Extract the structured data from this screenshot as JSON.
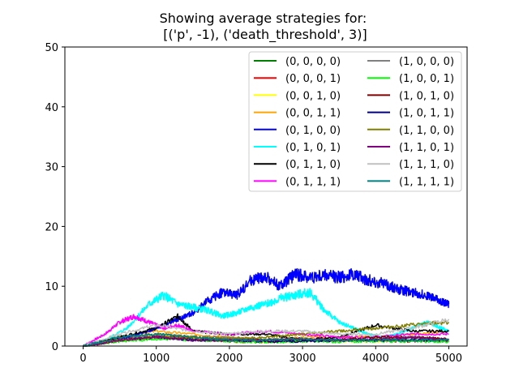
{
  "chart_data": {
    "type": "line",
    "title": "Showing average strategies for:\n[('p', -1), ('death_threshold', 3)]",
    "xlabel": "",
    "ylabel": "",
    "xlim": [
      -250,
      5250
    ],
    "ylim": [
      0,
      50
    ],
    "xticks": [
      0,
      1000,
      2000,
      3000,
      4000,
      5000
    ],
    "yticks": [
      0,
      10,
      20,
      30,
      40,
      50
    ],
    "grid": false,
    "legend_position": "top-right",
    "legend_columns": 2,
    "series": [
      {
        "name": "(0, 0, 0, 0)",
        "color": "#008000",
        "points": [
          [
            0,
            0
          ],
          [
            500,
            1.5
          ],
          [
            1000,
            1.8
          ],
          [
            1500,
            1.2
          ],
          [
            2000,
            1.0
          ],
          [
            2500,
            1.0
          ],
          [
            3000,
            1.1
          ],
          [
            3500,
            1.0
          ],
          [
            4000,
            1.1
          ],
          [
            4500,
            1.0
          ],
          [
            5000,
            0.8
          ]
        ]
      },
      {
        "name": "(0, 0, 0, 1)",
        "color": "#ff0000",
        "points": [
          [
            0,
            0
          ],
          [
            500,
            1.0
          ],
          [
            1000,
            1.5
          ],
          [
            1500,
            1.2
          ],
          [
            2000,
            0.8
          ],
          [
            2500,
            0.7
          ],
          [
            3000,
            0.8
          ],
          [
            3500,
            1.0
          ],
          [
            4000,
            0.9
          ],
          [
            4500,
            0.8
          ],
          [
            5000,
            1.0
          ]
        ]
      },
      {
        "name": "(0, 0, 1, 0)",
        "color": "#ffff00",
        "points": [
          [
            0,
            0
          ],
          [
            500,
            1.0
          ],
          [
            1000,
            2.0
          ],
          [
            1500,
            1.5
          ],
          [
            2000,
            1.0
          ],
          [
            2500,
            0.8
          ],
          [
            3000,
            1.0
          ],
          [
            3500,
            0.8
          ],
          [
            4000,
            0.8
          ],
          [
            4500,
            1.0
          ],
          [
            5000,
            1.0
          ]
        ]
      },
      {
        "name": "(0, 0, 1, 1)",
        "color": "#ffa500",
        "points": [
          [
            0,
            0
          ],
          [
            500,
            1.5
          ],
          [
            1000,
            2.5
          ],
          [
            1500,
            2.0
          ],
          [
            2000,
            1.5
          ],
          [
            2500,
            1.0
          ],
          [
            3000,
            1.5
          ],
          [
            3500,
            1.5
          ],
          [
            4000,
            1.5
          ],
          [
            4500,
            2.0
          ],
          [
            5000,
            2.5
          ]
        ]
      },
      {
        "name": "(0, 1, 0, 0)",
        "color": "#0000ff",
        "points": [
          [
            0,
            0
          ],
          [
            300,
            0.8
          ],
          [
            600,
            1.5
          ],
          [
            900,
            2.5
          ],
          [
            1100,
            3.5
          ],
          [
            1300,
            4.5
          ],
          [
            1500,
            5.5
          ],
          [
            1700,
            7.5
          ],
          [
            1900,
            9.0
          ],
          [
            2100,
            8.5
          ],
          [
            2300,
            11.0
          ],
          [
            2500,
            11.5
          ],
          [
            2700,
            10.0
          ],
          [
            2900,
            12.0
          ],
          [
            3100,
            11.5
          ],
          [
            3300,
            11.8
          ],
          [
            3500,
            11.5
          ],
          [
            3700,
            12.0
          ],
          [
            3900,
            11.0
          ],
          [
            4100,
            10.5
          ],
          [
            4300,
            9.5
          ],
          [
            4500,
            9.0
          ],
          [
            4700,
            8.5
          ],
          [
            4900,
            7.5
          ],
          [
            5000,
            7.0
          ]
        ]
      },
      {
        "name": "(0, 1, 0, 1)",
        "color": "#00ffff",
        "points": [
          [
            0,
            0
          ],
          [
            300,
            1.0
          ],
          [
            600,
            3.0
          ],
          [
            900,
            7.0
          ],
          [
            1100,
            8.5
          ],
          [
            1300,
            7.0
          ],
          [
            1500,
            6.5
          ],
          [
            1700,
            6.0
          ],
          [
            1900,
            5.0
          ],
          [
            2100,
            5.5
          ],
          [
            2300,
            6.5
          ],
          [
            2500,
            7.0
          ],
          [
            2700,
            8.0
          ],
          [
            2900,
            8.5
          ],
          [
            3100,
            9.0
          ],
          [
            3300,
            6.0
          ],
          [
            3500,
            4.0
          ],
          [
            3700,
            3.0
          ],
          [
            3900,
            2.0
          ],
          [
            4100,
            1.5
          ],
          [
            4300,
            2.0
          ],
          [
            4500,
            3.0
          ],
          [
            4700,
            4.0
          ],
          [
            4900,
            3.0
          ],
          [
            5000,
            2.5
          ]
        ]
      },
      {
        "name": "(0, 1, 1, 0)",
        "color": "#000000",
        "points": [
          [
            0,
            0
          ],
          [
            500,
            1.5
          ],
          [
            1000,
            3.0
          ],
          [
            1300,
            5.0
          ],
          [
            1500,
            2.5
          ],
          [
            2000,
            2.0
          ],
          [
            2500,
            2.0
          ],
          [
            3000,
            1.0
          ],
          [
            3500,
            1.5
          ],
          [
            4000,
            3.5
          ],
          [
            4500,
            2.5
          ],
          [
            5000,
            2.5
          ]
        ]
      },
      {
        "name": "(0, 1, 1, 1)",
        "color": "#ff00ff",
        "points": [
          [
            0,
            0
          ],
          [
            300,
            2.0
          ],
          [
            500,
            4.0
          ],
          [
            700,
            5.0
          ],
          [
            900,
            4.0
          ],
          [
            1100,
            3.0
          ],
          [
            1300,
            3.5
          ],
          [
            1500,
            2.5
          ],
          [
            2000,
            2.0
          ],
          [
            2500,
            2.5
          ],
          [
            3000,
            2.0
          ],
          [
            3500,
            1.5
          ],
          [
            4000,
            1.5
          ],
          [
            4500,
            2.0
          ],
          [
            5000,
            2.0
          ]
        ]
      },
      {
        "name": "(1, 0, 0, 0)",
        "color": "#808080",
        "points": [
          [
            0,
            0
          ],
          [
            500,
            1.0
          ],
          [
            1000,
            2.0
          ],
          [
            1500,
            1.5
          ],
          [
            2000,
            1.5
          ],
          [
            2500,
            1.0
          ],
          [
            3000,
            1.0
          ],
          [
            3500,
            1.0
          ],
          [
            4000,
            1.0
          ],
          [
            4500,
            1.5
          ],
          [
            5000,
            1.0
          ]
        ]
      },
      {
        "name": "(1, 0, 0, 1)",
        "color": "#00ff00",
        "points": [
          [
            0,
            0
          ],
          [
            500,
            0.8
          ],
          [
            1000,
            1.2
          ],
          [
            1500,
            1.0
          ],
          [
            2000,
            0.8
          ],
          [
            2500,
            0.6
          ],
          [
            3000,
            0.8
          ],
          [
            3500,
            0.7
          ],
          [
            4000,
            0.8
          ],
          [
            4500,
            0.8
          ],
          [
            5000,
            0.7
          ]
        ]
      },
      {
        "name": "(1, 0, 1, 0)",
        "color": "#800000",
        "points": [
          [
            0,
            0
          ],
          [
            500,
            1.0
          ],
          [
            1000,
            1.5
          ],
          [
            1500,
            1.5
          ],
          [
            2000,
            1.0
          ],
          [
            2500,
            1.0
          ],
          [
            3000,
            1.0
          ],
          [
            3500,
            1.0
          ],
          [
            4000,
            1.5
          ],
          [
            4500,
            1.5
          ],
          [
            5000,
            1.2
          ]
        ]
      },
      {
        "name": "(1, 0, 1, 1)",
        "color": "#000080",
        "points": [
          [
            0,
            0
          ],
          [
            500,
            1.0
          ],
          [
            1000,
            1.5
          ],
          [
            1500,
            1.0
          ],
          [
            2000,
            1.0
          ],
          [
            2500,
            0.8
          ],
          [
            3000,
            0.8
          ],
          [
            3500,
            1.0
          ],
          [
            4000,
            1.0
          ],
          [
            4500,
            1.0
          ],
          [
            5000,
            1.0
          ]
        ]
      },
      {
        "name": "(1, 1, 0, 0)",
        "color": "#808000",
        "points": [
          [
            0,
            0
          ],
          [
            500,
            1.0
          ],
          [
            1000,
            1.5
          ],
          [
            1500,
            1.5
          ],
          [
            2000,
            1.2
          ],
          [
            2500,
            1.5
          ],
          [
            3000,
            2.0
          ],
          [
            3500,
            2.5
          ],
          [
            4000,
            3.0
          ],
          [
            4500,
            3.5
          ],
          [
            5000,
            4.0
          ]
        ]
      },
      {
        "name": "(1, 1, 0, 1)",
        "color": "#800080",
        "points": [
          [
            0,
            0
          ],
          [
            500,
            1.0
          ],
          [
            1000,
            1.5
          ],
          [
            1500,
            1.0
          ],
          [
            2000,
            1.0
          ],
          [
            2500,
            1.0
          ],
          [
            3000,
            1.2
          ],
          [
            3500,
            1.0
          ],
          [
            4000,
            1.0
          ],
          [
            4500,
            1.5
          ],
          [
            5000,
            1.0
          ]
        ]
      },
      {
        "name": "(1, 1, 1, 0)",
        "color": "#c0c0c0",
        "points": [
          [
            0,
            0
          ],
          [
            500,
            2.0
          ],
          [
            1000,
            3.5
          ],
          [
            1500,
            2.5
          ],
          [
            2000,
            2.0
          ],
          [
            2500,
            2.5
          ],
          [
            3000,
            2.5
          ],
          [
            3500,
            2.0
          ],
          [
            4000,
            2.0
          ],
          [
            4500,
            3.0
          ],
          [
            5000,
            4.5
          ]
        ]
      },
      {
        "name": "(1, 1, 1, 1)",
        "color": "#008080",
        "points": [
          [
            0,
            0
          ],
          [
            500,
            1.5
          ],
          [
            1000,
            2.0
          ],
          [
            1500,
            1.5
          ],
          [
            2000,
            1.0
          ],
          [
            2500,
            1.0
          ],
          [
            3000,
            1.2
          ],
          [
            3500,
            1.0
          ],
          [
            4000,
            1.0
          ],
          [
            4500,
            1.0
          ],
          [
            5000,
            1.0
          ]
        ]
      }
    ]
  }
}
